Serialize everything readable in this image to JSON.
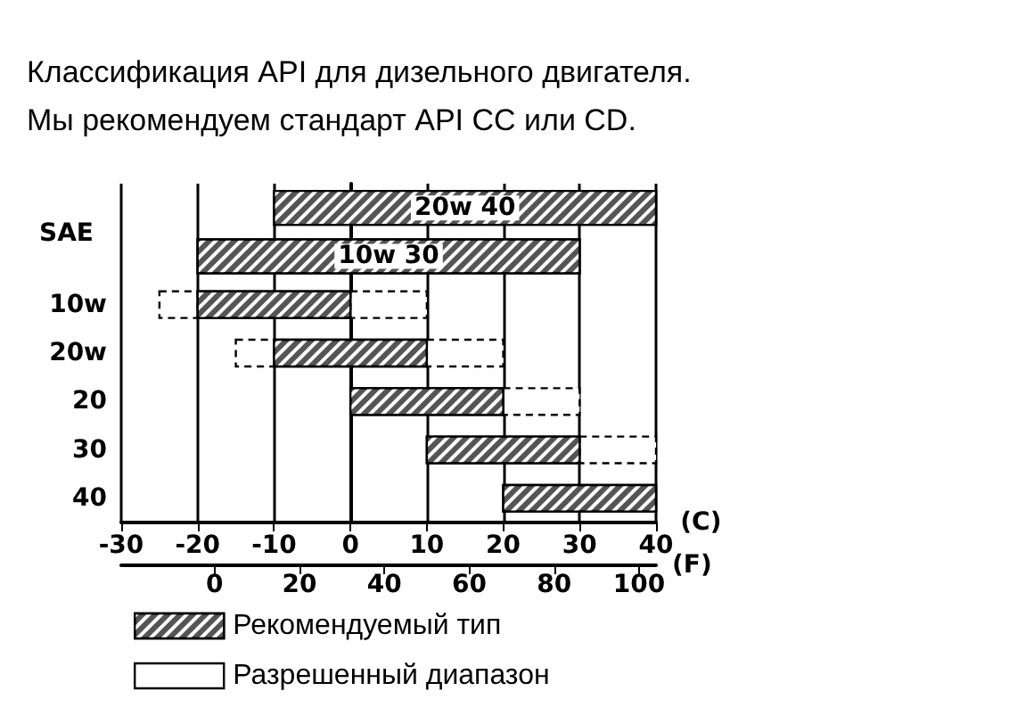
{
  "chart_data": {
    "type": "bar",
    "orientation": "horizontal",
    "title": "Классификация API для дизельного двигателя.\nМы рекомендуем стандарт API CC или CD.",
    "ylabel": "SAE",
    "xlabel": "(C)",
    "x2label": "(F)",
    "categories": [
      null,
      null,
      "10w",
      "20w",
      "20",
      "30",
      "40"
    ],
    "series": [
      {
        "name": "Рекомендуемый тип",
        "color": "#555555",
        "base": [
          -10,
          -20,
          -20,
          -10,
          0,
          10,
          20
        ],
        "values": [
          50,
          50,
          20,
          20,
          20,
          20,
          20
        ]
      },
      {
        "name": "Разрешенный диапазон",
        "color": "#ffffff",
        "line_style": "dashed",
        "base": [
          null,
          null,
          0,
          10,
          20,
          30,
          null
        ],
        "values": [
          null,
          null,
          10,
          10,
          10,
          10,
          null
        ]
      },
      {
        "color": "#ffffff",
        "line_style": "dashed",
        "base": [
          null,
          null,
          -25,
          -15,
          null,
          null,
          null
        ],
        "values": [
          null,
          null,
          5,
          5,
          null,
          null,
          null
        ]
      }
    ],
    "annotations": [
      "20w 40",
      "10w 30"
    ],
    "xlim": [
      -30,
      40
    ],
    "xticks": [
      -30,
      -20,
      -10,
      0,
      10,
      20,
      30,
      40
    ],
    "x2lim": [
      -22,
      104
    ],
    "x2ticks": [
      0,
      20,
      40,
      60,
      80,
      100
    ],
    "grid": "x",
    "legend": "bottom left"
  }
}
